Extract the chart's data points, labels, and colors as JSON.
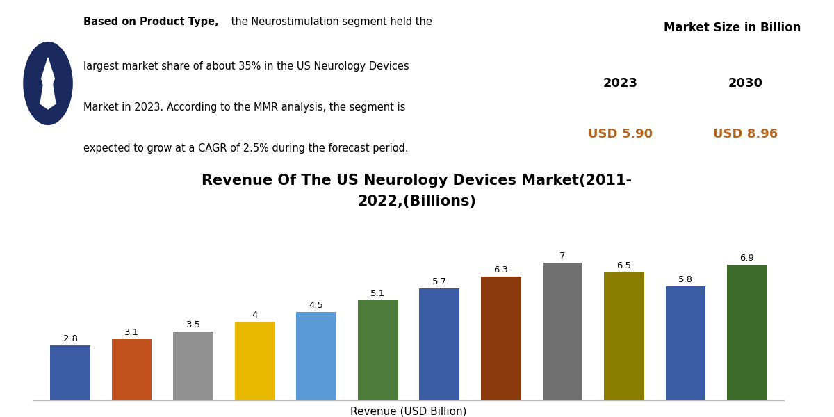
{
  "title_line1": "Revenue Of The US Neurology Devices Market(2011-",
  "title_line2": "2022,(Billions)",
  "xlabel": "Revenue (USD Billion)",
  "values": [
    2.8,
    3.1,
    3.5,
    4.0,
    4.5,
    5.1,
    5.7,
    6.3,
    7.0,
    6.5,
    5.8,
    6.9
  ],
  "bar_labels": [
    "2.8",
    "3.1",
    "3.5",
    "4",
    "4.5",
    "5.1",
    "5.7",
    "6.3",
    "7",
    "6.5",
    "5.8",
    "6.9"
  ],
  "bar_colors": [
    "#3b5ba5",
    "#c1521e",
    "#909090",
    "#e8b800",
    "#5b9bd5",
    "#4d7c3a",
    "#3b5ba5",
    "#8b3a0e",
    "#707070",
    "#8b7d00",
    "#3b5ba5",
    "#3d6b2a"
  ],
  "background_color": "#ffffff",
  "info_bold": "Based on Product Type,",
  "info_rest": " the Neurostimulation segment held the largest market share of about 35% in the US Neurology Devices Market in 2023. According to the MMR analysis, the segment is expected to grow at a CAGR of 2.5% during the forecast period.",
  "market_size_label": "Market Size in Billion",
  "year_2023": "2023",
  "year_2030": "2030",
  "value_2023": "USD 5.90",
  "value_2030": "USD 8.96",
  "icon_bg_color": "#1a2a5e",
  "orange_color": "#b5651d",
  "right_border_color": "#2b4faa",
  "title_fontsize": 15,
  "bar_label_fontsize": 9.5,
  "ylim": [
    0,
    8.5
  ]
}
